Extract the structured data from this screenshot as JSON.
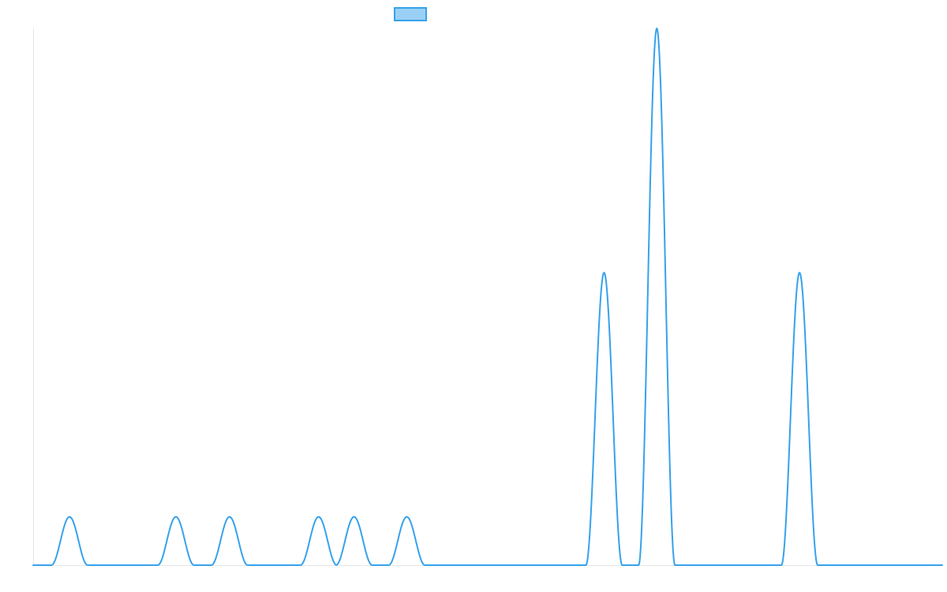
{
  "chart_data": {
    "type": "line",
    "title": "",
    "xlabel": "",
    "ylabel": "",
    "xlim": [
      0,
      1000
    ],
    "ylim": [
      0,
      1
    ],
    "grid": false,
    "legend": {
      "placement": "top-center",
      "swatch_color": "#36a2eb",
      "swatch_fill": "#9ad0f5"
    },
    "series": [
      {
        "color": "#36a2eb",
        "baseline": 0,
        "peaks": [
          {
            "center": 40,
            "height": 0.09,
            "half_width": 20
          },
          {
            "center": 157,
            "height": 0.09,
            "half_width": 20
          },
          {
            "center": 216,
            "height": 0.09,
            "half_width": 20
          },
          {
            "center": 314,
            "height": 0.09,
            "half_width": 20
          },
          {
            "center": 353,
            "height": 0.09,
            "half_width": 20
          },
          {
            "center": 411,
            "height": 0.09,
            "half_width": 20
          },
          {
            "center": 628,
            "height": 0.545,
            "half_width": 20
          },
          {
            "center": 686,
            "height": 1.0,
            "half_width": 20
          },
          {
            "center": 843,
            "height": 0.545,
            "half_width": 20
          }
        ]
      }
    ]
  }
}
